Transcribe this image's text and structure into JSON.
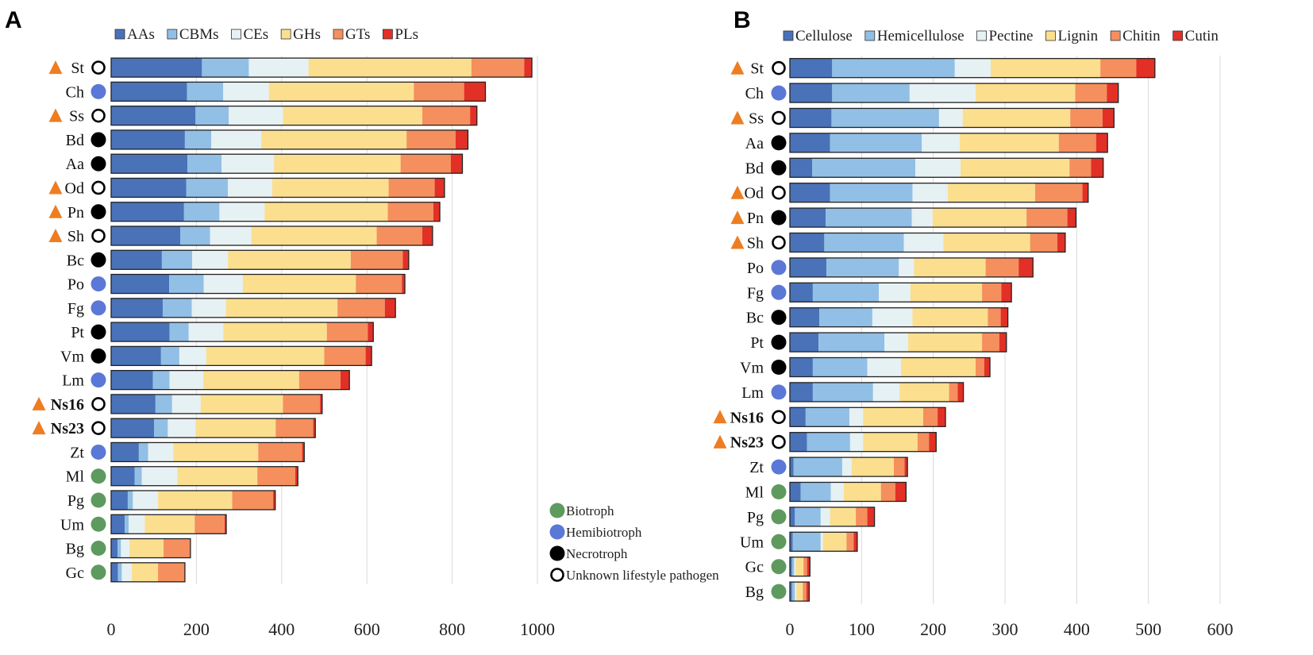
{
  "lifestyle_legend": [
    {
      "key": "bio",
      "label": "Biotroph",
      "color": "#5e9a5e"
    },
    {
      "key": "hemi",
      "label": "Hemibiotroph",
      "color": "#5b78d6"
    },
    {
      "key": "necro",
      "label": "Necrotroph",
      "color": "#000000"
    },
    {
      "key": "unk",
      "label": "Unknown lifestyle pathogen",
      "color": "#ffffff"
    }
  ],
  "marker_color": "#ee7d22",
  "chart_data": [
    {
      "panel": "A",
      "type": "bar",
      "orientation": "horizontal",
      "stacked": true,
      "xlim": [
        0,
        1000
      ],
      "xticks": [
        0,
        200,
        400,
        600,
        800,
        1000
      ],
      "legend_position": "top",
      "categories": [
        "St",
        "Ch",
        "Ss",
        "Bd",
        "Aa",
        "Od",
        "Pn",
        "Sh",
        "Bc",
        "Po",
        "Fg",
        "Pt",
        "Vm",
        "Lm",
        "Ns16",
        "Ns23",
        "Zt",
        "Ml",
        "Pg",
        "Um",
        "Bg",
        "Gc"
      ],
      "bold": [
        false,
        false,
        false,
        false,
        false,
        false,
        false,
        false,
        false,
        false,
        false,
        false,
        false,
        false,
        true,
        true,
        false,
        false,
        false,
        false,
        false,
        false
      ],
      "triangle": [
        true,
        false,
        true,
        false,
        false,
        true,
        true,
        true,
        false,
        false,
        false,
        false,
        false,
        false,
        true,
        true,
        false,
        false,
        false,
        false,
        false,
        false
      ],
      "lifestyle": [
        "unk",
        "hemi",
        "unk",
        "necro",
        "necro",
        "unk",
        "necro",
        "unk",
        "necro",
        "hemi",
        "hemi",
        "necro",
        "necro",
        "hemi",
        "unk",
        "unk",
        "hemi",
        "bio",
        "bio",
        "bio",
        "bio",
        "bio"
      ],
      "series": [
        {
          "name": "AAs",
          "color": "#4a72b8",
          "values": [
            213,
            178,
            198,
            173,
            179,
            176,
            171,
            162,
            119,
            136,
            121,
            137,
            117,
            98,
            104,
            101,
            65,
            55,
            39,
            32,
            15,
            16
          ]
        },
        {
          "name": "CBMs",
          "color": "#92bfe5",
          "values": [
            110,
            85,
            78,
            62,
            80,
            98,
            83,
            70,
            71,
            81,
            68,
            45,
            43,
            39,
            39,
            32,
            22,
            17,
            12,
            9,
            8,
            9
          ]
        },
        {
          "name": "CEs",
          "color": "#e6f1f4",
          "values": [
            140,
            107,
            127,
            117,
            123,
            104,
            106,
            97,
            84,
            92,
            80,
            81,
            63,
            79,
            67,
            65,
            59,
            83,
            59,
            38,
            20,
            23
          ]
        },
        {
          "name": "GHs",
          "color": "#fbdf8f",
          "values": [
            382,
            340,
            327,
            341,
            297,
            273,
            289,
            294,
            288,
            265,
            262,
            243,
            277,
            225,
            193,
            188,
            199,
            188,
            174,
            117,
            80,
            62
          ]
        },
        {
          "name": "GTs",
          "color": "#f58f5e",
          "values": [
            124,
            118,
            112,
            115,
            118,
            108,
            107,
            107,
            122,
            108,
            111,
            96,
            97,
            97,
            87,
            88,
            103,
            89,
            96,
            70,
            62,
            62
          ]
        },
        {
          "name": "PLs",
          "color": "#e23026",
          "values": [
            18,
            50,
            16,
            29,
            27,
            23,
            15,
            24,
            14,
            7,
            25,
            13,
            14,
            21,
            5,
            5,
            5,
            6,
            5,
            4,
            1,
            1
          ]
        }
      ]
    },
    {
      "panel": "B",
      "type": "bar",
      "orientation": "horizontal",
      "stacked": true,
      "xlim": [
        0,
        600
      ],
      "xticks": [
        0,
        100,
        200,
        300,
        400,
        500,
        600
      ],
      "legend_position": "top",
      "categories": [
        "St",
        "Ch",
        "Ss",
        "Aa",
        "Bd",
        "Od",
        "Pn",
        "Sh",
        "Po",
        "Fg",
        "Bc",
        "Pt",
        "Vm",
        "Lm",
        "Ns16",
        "Ns23",
        "Zt",
        "Ml",
        "Pg",
        "Um",
        "Gc",
        "Bg"
      ],
      "bold": [
        false,
        false,
        false,
        false,
        false,
        false,
        false,
        false,
        false,
        false,
        false,
        false,
        false,
        false,
        true,
        true,
        false,
        false,
        false,
        false,
        false,
        false
      ],
      "triangle": [
        true,
        false,
        true,
        false,
        false,
        true,
        true,
        true,
        false,
        false,
        false,
        false,
        false,
        false,
        true,
        true,
        false,
        false,
        false,
        false,
        false,
        false
      ],
      "lifestyle": [
        "unk",
        "hemi",
        "unk",
        "necro",
        "necro",
        "unk",
        "necro",
        "unk",
        "hemi",
        "hemi",
        "necro",
        "necro",
        "necro",
        "hemi",
        "unk",
        "unk",
        "hemi",
        "bio",
        "bio",
        "bio",
        "bio",
        "bio"
      ],
      "series": [
        {
          "name": "Cellulose",
          "color": "#4a72b8",
          "values": [
            59,
            59,
            58,
            56,
            31,
            56,
            50,
            48,
            51,
            32,
            41,
            40,
            32,
            32,
            22,
            24,
            5,
            15,
            7,
            4,
            3,
            3
          ]
        },
        {
          "name": "Hemicellulose",
          "color": "#92bfe5",
          "values": [
            171,
            108,
            150,
            128,
            144,
            115,
            120,
            111,
            101,
            92,
            74,
            92,
            76,
            84,
            61,
            60,
            68,
            42,
            36,
            39,
            3,
            4
          ]
        },
        {
          "name": "Pectine",
          "color": "#e6f1f4",
          "values": [
            50,
            92,
            33,
            53,
            63,
            49,
            29,
            55,
            21,
            44,
            56,
            33,
            47,
            37,
            19,
            18,
            13,
            18,
            13,
            3,
            2,
            2
          ]
        },
        {
          "name": "Lignin",
          "color": "#fbdf8f",
          "values": [
            153,
            139,
            150,
            138,
            152,
            122,
            131,
            121,
            100,
            100,
            105,
            103,
            104,
            69,
            84,
            76,
            59,
            52,
            36,
            33,
            11,
            9
          ]
        },
        {
          "name": "Chitin",
          "color": "#f58f5e",
          "values": [
            50,
            44,
            45,
            52,
            30,
            66,
            57,
            38,
            46,
            27,
            18,
            24,
            12,
            12,
            20,
            16,
            15,
            20,
            16,
            10,
            5,
            5
          ]
        },
        {
          "name": "Cutin",
          "color": "#e23026",
          "values": [
            26,
            16,
            16,
            16,
            17,
            8,
            12,
            11,
            20,
            14,
            10,
            10,
            8,
            8,
            11,
            10,
            4,
            15,
            10,
            5,
            4,
            4
          ]
        }
      ]
    }
  ]
}
